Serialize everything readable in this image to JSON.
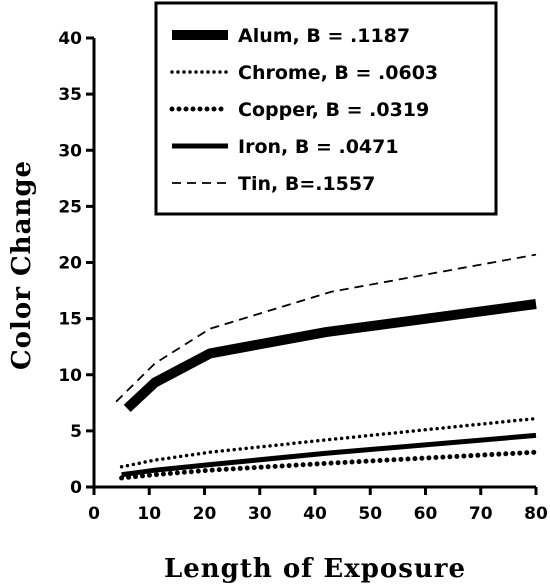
{
  "chart_data": {
    "type": "line",
    "title": "",
    "xlabel": "Length of Exposure",
    "ylabel": "Color Change",
    "xlim": [
      0,
      80
    ],
    "ylim": [
      0,
      40
    ],
    "xticks": [
      "0",
      "10",
      "20",
      "30",
      "40",
      "50",
      "60",
      "70",
      "80"
    ],
    "yticks": [
      "0",
      "5",
      "10",
      "15",
      "20",
      "25",
      "30",
      "35",
      "40"
    ],
    "grid": false,
    "legend_position": "top-right",
    "series": [
      {
        "name": "Alum, B = .1187",
        "style": "thick-solid",
        "color": "#000000",
        "points": [
          [
            6,
            7.0
          ],
          [
            11,
            9.3
          ],
          [
            21,
            11.9
          ],
          [
            42,
            13.8
          ],
          [
            80,
            16.3
          ]
        ]
      },
      {
        "name": "Chrome, B = .0603",
        "style": "dotted",
        "color": "#000000",
        "points": [
          [
            5,
            1.8
          ],
          [
            11,
            2.4
          ],
          [
            21,
            3.1
          ],
          [
            42,
            4.2
          ],
          [
            80,
            6.1
          ]
        ]
      },
      {
        "name": "Copper, B = .0319",
        "style": "heavy-dotted",
        "color": "#000000",
        "points": [
          [
            5,
            0.8
          ],
          [
            11,
            1.1
          ],
          [
            21,
            1.5
          ],
          [
            42,
            2.1
          ],
          [
            80,
            3.1
          ]
        ]
      },
      {
        "name": "Iron, B = .0471",
        "style": "solid",
        "color": "#000000",
        "points": [
          [
            5,
            1.1
          ],
          [
            11,
            1.5
          ],
          [
            21,
            2.0
          ],
          [
            42,
            3.0
          ],
          [
            80,
            4.6
          ]
        ]
      },
      {
        "name": "Tin, B=.1557",
        "style": "dashed",
        "color": "#000000",
        "points": [
          [
            4,
            7.6
          ],
          [
            11,
            11.0
          ],
          [
            21,
            14.1
          ],
          [
            43,
            17.4
          ],
          [
            80,
            20.7
          ]
        ]
      }
    ]
  }
}
